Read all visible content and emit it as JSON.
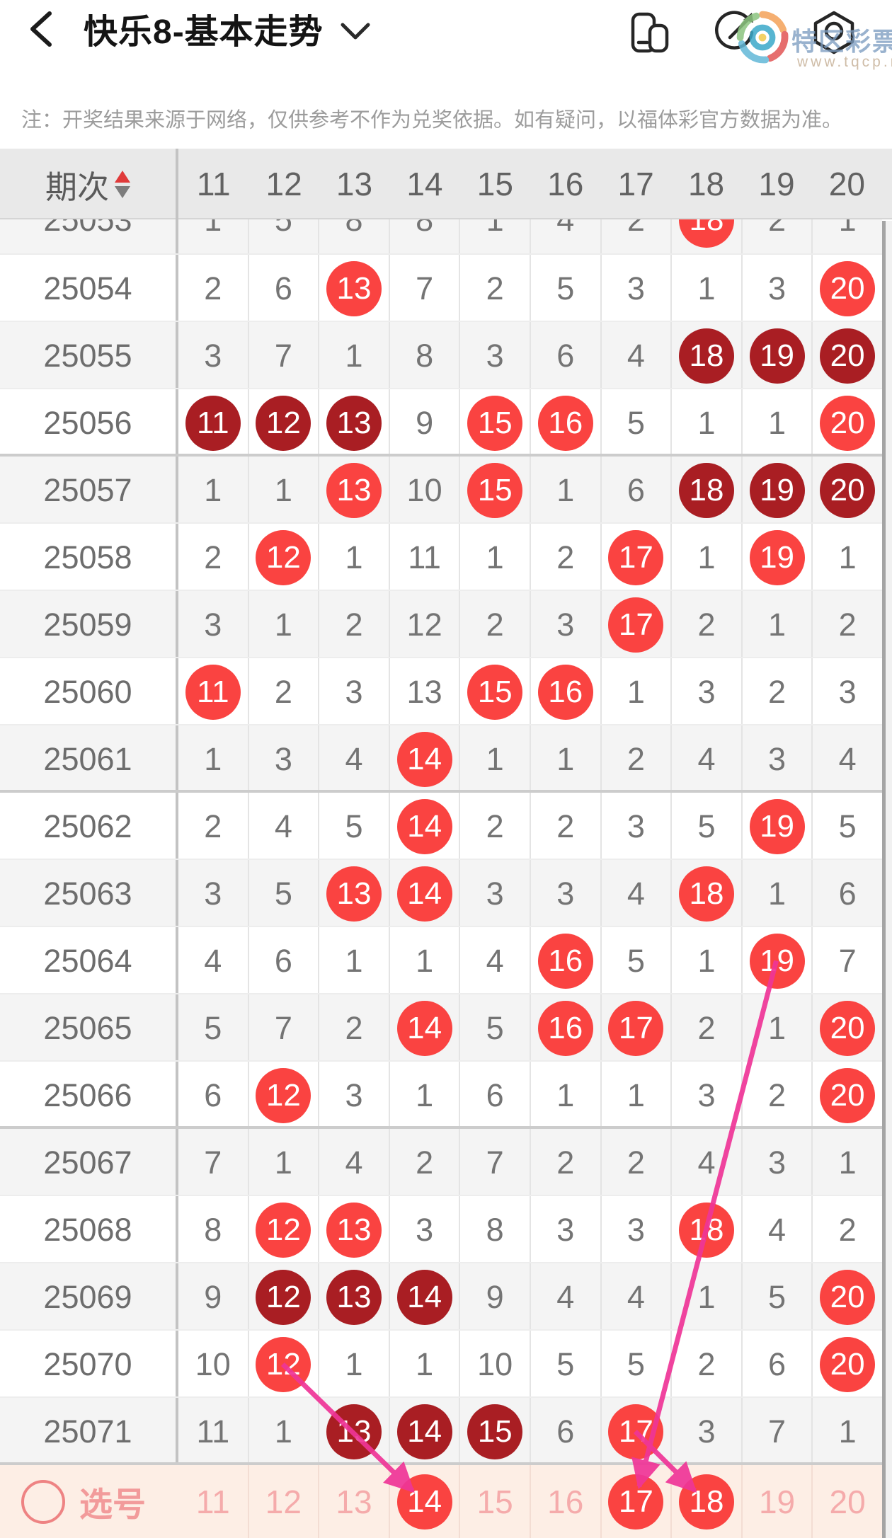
{
  "top_bar": {
    "title": "快乐8-基本走势"
  },
  "note": "注：开奖结果来源于网络，仅供参考不作为兑奖依据。如有疑问，以福体彩官方数据为准。",
  "watermark": {
    "site_name": "特区彩票网",
    "site_url": "www.tqcp.net"
  },
  "table": {
    "period_header": "期次",
    "columns": [
      "11",
      "12",
      "13",
      "14",
      "15",
      "16",
      "17",
      "18",
      "19",
      "20"
    ],
    "ball_legend": {
      "*": "bright red ball",
      "#": "dark red ball"
    },
    "rows": [
      {
        "period": "25053",
        "partial": true,
        "cells": [
          "1",
          "5",
          "8",
          "8",
          "1",
          "4",
          "2",
          "18*",
          "2",
          "1"
        ]
      },
      {
        "period": "25054",
        "cells": [
          "2",
          "6",
          "13*",
          "7",
          "2",
          "5",
          "3",
          "1",
          "3",
          "20*"
        ]
      },
      {
        "period": "25055",
        "cells": [
          "3",
          "7",
          "1",
          "8",
          "3",
          "6",
          "4",
          "18#",
          "19#",
          "20#"
        ]
      },
      {
        "period": "25056",
        "cells": [
          "11#",
          "12#",
          "13#",
          "9",
          "15*",
          "16*",
          "5",
          "1",
          "1",
          "20*"
        ]
      },
      {
        "period": "25057",
        "cells": [
          "1",
          "1",
          "13*",
          "10",
          "15*",
          "1",
          "6",
          "18#",
          "19#",
          "20#"
        ]
      },
      {
        "period": "25058",
        "cells": [
          "2",
          "12*",
          "1",
          "11",
          "1",
          "2",
          "17*",
          "1",
          "19*",
          "1"
        ]
      },
      {
        "period": "25059",
        "cells": [
          "3",
          "1",
          "2",
          "12",
          "2",
          "3",
          "17*",
          "2",
          "1",
          "2"
        ]
      },
      {
        "period": "25060",
        "cells": [
          "11*",
          "2",
          "3",
          "13",
          "15*",
          "16*",
          "1",
          "3",
          "2",
          "3"
        ]
      },
      {
        "period": "25061",
        "cells": [
          "1",
          "3",
          "4",
          "14*",
          "1",
          "1",
          "2",
          "4",
          "3",
          "4"
        ]
      },
      {
        "period": "25062",
        "cells": [
          "2",
          "4",
          "5",
          "14*",
          "2",
          "2",
          "3",
          "5",
          "19*",
          "5"
        ]
      },
      {
        "period": "25063",
        "cells": [
          "3",
          "5",
          "13*",
          "14*",
          "3",
          "3",
          "4",
          "18*",
          "1",
          "6"
        ]
      },
      {
        "period": "25064",
        "cells": [
          "4",
          "6",
          "1",
          "1",
          "4",
          "16*",
          "5",
          "1",
          "19*",
          "7"
        ]
      },
      {
        "period": "25065",
        "cells": [
          "5",
          "7",
          "2",
          "14*",
          "5",
          "16*",
          "17*",
          "2",
          "1",
          "20*"
        ]
      },
      {
        "period": "25066",
        "cells": [
          "6",
          "12*",
          "3",
          "1",
          "6",
          "1",
          "1",
          "3",
          "2",
          "20*"
        ]
      },
      {
        "period": "25067",
        "cells": [
          "7",
          "1",
          "4",
          "2",
          "7",
          "2",
          "2",
          "4",
          "3",
          "1"
        ]
      },
      {
        "period": "25068",
        "cells": [
          "8",
          "12*",
          "13*",
          "3",
          "8",
          "3",
          "3",
          "18*",
          "4",
          "2"
        ]
      },
      {
        "period": "25069",
        "cells": [
          "9",
          "12#",
          "13#",
          "14#",
          "9",
          "4",
          "4",
          "1",
          "5",
          "20*"
        ]
      },
      {
        "period": "25070",
        "cells": [
          "10",
          "12*",
          "1",
          "1",
          "10",
          "5",
          "5",
          "2",
          "6",
          "20*"
        ]
      },
      {
        "period": "25071",
        "cells": [
          "11",
          "1",
          "13#",
          "14#",
          "15#",
          "6",
          "17*",
          "3",
          "7",
          "1"
        ]
      }
    ],
    "pick_row": {
      "label": "选号",
      "cells": [
        "11",
        "12",
        "13",
        "14*",
        "15",
        "16",
        "17*",
        "18*",
        "19",
        "20"
      ]
    }
  },
  "arrows": [
    {
      "from": {
        "period": "25070",
        "col": "12"
      },
      "to": {
        "period": "pick",
        "col": "14"
      }
    },
    {
      "from": {
        "period": "25064",
        "col": "19"
      },
      "to": {
        "period": "pick",
        "col": "17"
      }
    },
    {
      "from": {
        "period": "25071",
        "col": "17"
      },
      "to": {
        "period": "pick",
        "col": "18"
      }
    }
  ],
  "colors": {
    "ball_red": "#fa4341",
    "ball_dark": "#a91e23",
    "arrow_pink": "#ef3597",
    "pick_row_bg": "#fdeee5",
    "pick_text": "#f29b9b",
    "header_bg": "#e9e9e9"
  }
}
